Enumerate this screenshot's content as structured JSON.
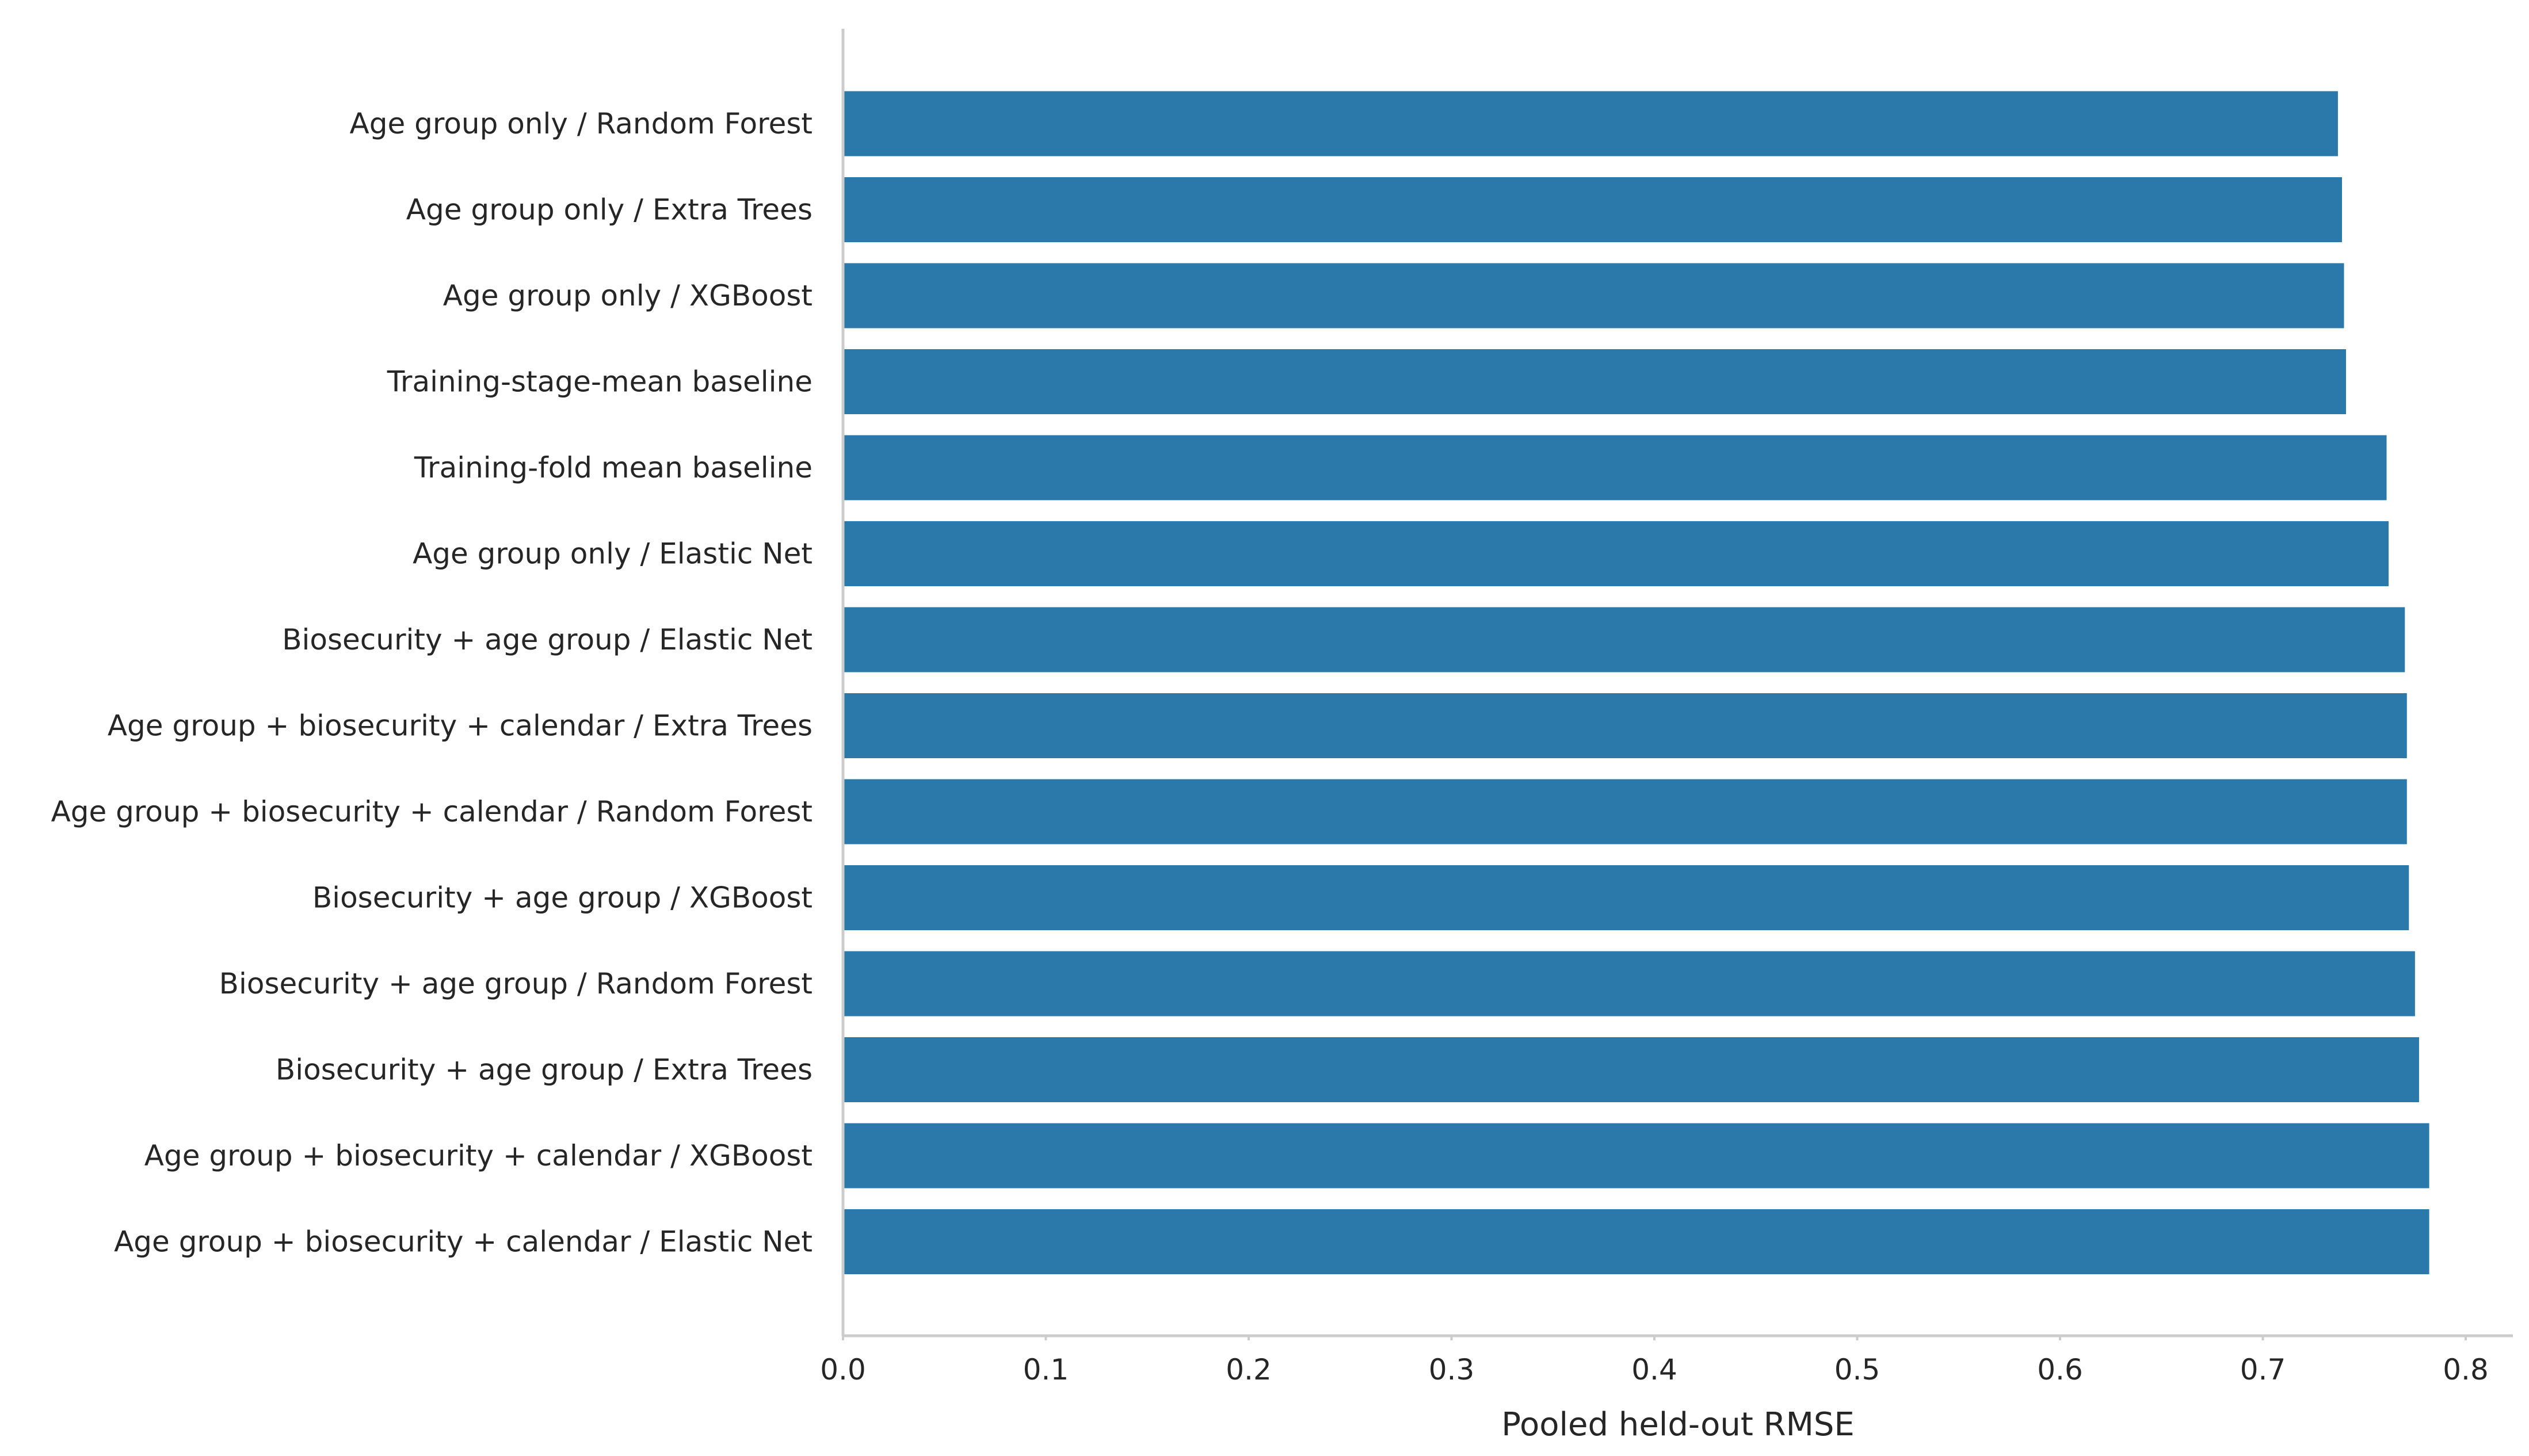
{
  "chart_data": {
    "type": "bar",
    "orientation": "horizontal",
    "title": "",
    "xlabel": "Pooled held-out RMSE",
    "ylabel": "",
    "xlim": [
      0.0,
      0.8
    ],
    "x_ticks": [
      "0.0",
      "0.1",
      "0.2",
      "0.3",
      "0.4",
      "0.5",
      "0.6",
      "0.7",
      "0.8"
    ],
    "grid": false,
    "bar_color": "#2a79aa",
    "categories": [
      "Age group only / Random Forest",
      "Age group only / Extra Trees",
      "Age group only / XGBoost",
      "Training-stage-mean baseline",
      "Training-fold mean baseline",
      "Age group only / Elastic Net",
      "Biosecurity + age group / Elastic Net",
      "Age group + biosecurity + calendar / Extra Trees",
      "Age group + biosecurity + calendar / Random Forest",
      "Biosecurity + age group / XGBoost",
      "Biosecurity + age group / Random Forest",
      "Biosecurity + age group / Extra Trees",
      "Age group + biosecurity + calendar / XGBoost",
      "Age group + biosecurity + calendar / Elastic Net"
    ],
    "values": [
      0.737,
      0.739,
      0.74,
      0.741,
      0.761,
      0.762,
      0.77,
      0.771,
      0.771,
      0.772,
      0.775,
      0.777,
      0.782,
      0.782
    ]
  }
}
